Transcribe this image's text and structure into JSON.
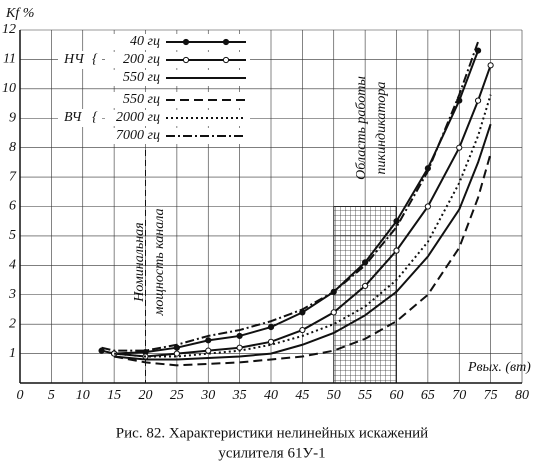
{
  "chart_data": {
    "type": "line",
    "y_label": "Kf %",
    "x_label": "Pвых. (вт)",
    "caption": [
      "Рис. 82. Характеристики нелинейных искажений",
      "усилителя 61У-1"
    ],
    "legend_groups": [
      "НЧ",
      "ВЧ"
    ],
    "annotations": [
      [
        "Номинальная",
        "мощность канала"
      ],
      [
        "Область работы",
        "пикиндикатора"
      ]
    ],
    "nominal_x": 20,
    "region_x": [
      50,
      60
    ],
    "region_ymax": 6,
    "x": [
      13,
      15,
      20,
      25,
      30,
      35,
      40,
      45,
      50,
      55,
      60,
      65,
      70,
      73,
      75
    ],
    "series": [
      {
        "name": "40 гц",
        "color": "#111111",
        "dash": "solid",
        "marker": "filled",
        "values": [
          1.1,
          1.0,
          1.05,
          1.2,
          1.45,
          1.6,
          1.9,
          2.4,
          3.1,
          4.1,
          5.5,
          7.3,
          9.6,
          11.3,
          null
        ]
      },
      {
        "name": "200 гц",
        "color": "#111111",
        "dash": "solid",
        "marker": "open",
        "values": [
          null,
          1.0,
          0.9,
          1.0,
          1.1,
          1.2,
          1.4,
          1.8,
          2.4,
          3.3,
          4.5,
          6.0,
          8.0,
          9.6,
          10.8
        ]
      },
      {
        "name": "550 гц",
        "color": "#111111",
        "dash": "solid",
        "marker": null,
        "values": [
          null,
          0.9,
          0.8,
          0.8,
          0.85,
          0.9,
          1.0,
          1.3,
          1.7,
          2.3,
          3.1,
          4.3,
          5.9,
          7.5,
          8.8
        ]
      },
      {
        "name": "550 гц",
        "color": "#111111",
        "dash": "dashed",
        "marker": null,
        "values": [
          null,
          0.9,
          0.7,
          0.6,
          0.65,
          0.7,
          0.8,
          0.9,
          1.1,
          1.5,
          2.1,
          3.0,
          4.6,
          6.3,
          7.8
        ]
      },
      {
        "name": "2000 гц",
        "color": "#111111",
        "dash": "dotted",
        "marker": null,
        "values": [
          null,
          1.0,
          0.9,
          0.9,
          1.0,
          1.1,
          1.3,
          1.6,
          2.0,
          2.6,
          3.5,
          4.8,
          6.8,
          8.4,
          9.8
        ]
      },
      {
        "name": "7000 гц",
        "color": "#111111",
        "dash": "dashdot",
        "marker": null,
        "values": [
          1.2,
          1.1,
          1.1,
          1.3,
          1.6,
          1.8,
          2.1,
          2.5,
          3.1,
          4.0,
          5.3,
          7.2,
          9.8,
          11.6,
          null
        ]
      }
    ],
    "xlim": [
      0,
      80
    ],
    "xticks": [
      0,
      5,
      10,
      15,
      20,
      25,
      30,
      35,
      40,
      45,
      50,
      55,
      60,
      65,
      70,
      75,
      80
    ],
    "ylim": [
      0,
      12
    ],
    "yticks": [
      1,
      2,
      3,
      4,
      5,
      6,
      7,
      8,
      9,
      10,
      11,
      12
    ],
    "grid": true
  }
}
